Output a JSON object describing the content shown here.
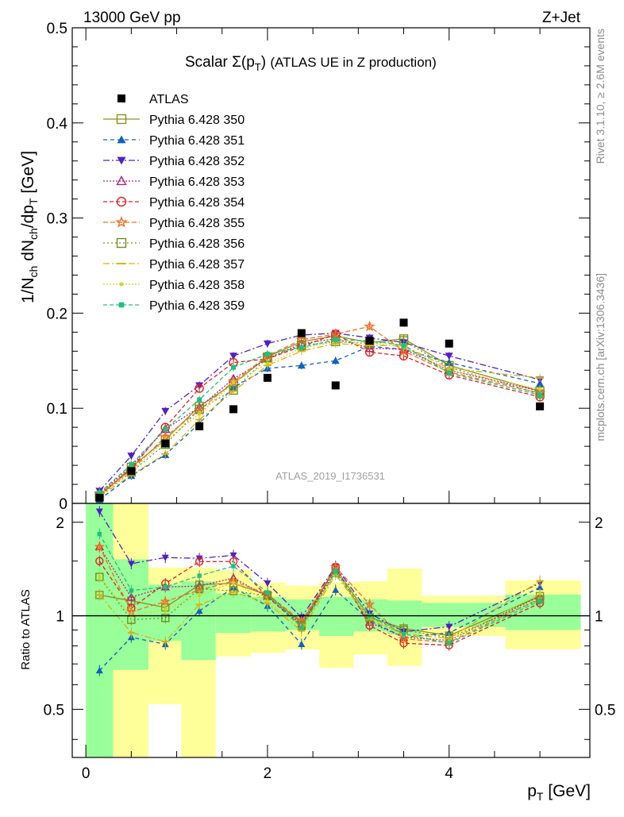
{
  "header": {
    "energy": "13000 GeV pp",
    "process": "Z+Jet"
  },
  "side": {
    "rivet": "Rivet 3.1.10, ≥ 2.6M events",
    "mcplots": "mcplots.cern.ch [arXiv:1306.3436]"
  },
  "watermark": "ATLAS_2019_I1736531",
  "chart_data": {
    "type": "scatter",
    "title": "Scalar Σ(p_T) (ATLAS UE in Z production)",
    "xlabel": "p_T [GeV]",
    "ylabel": "1/N_ch dN_ch/dp_T [GeV]",
    "ratio_ylabel": "Ratio to ATLAS",
    "xlim": [
      -0.15,
      5.55
    ],
    "ylim": [
      0,
      0.5
    ],
    "ratio_ylim": [
      0.35,
      2.3
    ],
    "ratio_scale": "log",
    "x_ticks": [
      0,
      2,
      4
    ],
    "y_ticks": [
      0,
      0.1,
      0.2,
      0.3,
      0.4,
      0.5
    ],
    "y_tick_labels": [
      "0",
      "0.1",
      "0.2",
      "0.3",
      "0.4",
      "0.5"
    ],
    "ratio_ticks": [
      0.5,
      1,
      2
    ],
    "ratio_tick_labels": [
      "0.5",
      "1",
      "2"
    ],
    "legend_position": "top-left",
    "x": [
      0.15,
      0.5,
      0.875,
      1.25,
      1.625,
      2.0,
      2.375,
      2.75,
      3.125,
      3.5,
      4.0,
      5.0
    ],
    "data": {
      "name": "ATLAS",
      "values": [
        0.006,
        0.034,
        0.063,
        0.081,
        0.099,
        0.132,
        0.179,
        0.124,
        0.171,
        0.19,
        0.168,
        0.102
      ]
    },
    "series": [
      {
        "name": "Pythia 6.428 350",
        "color": "#8f8f1f",
        "marker": "square-open",
        "dash": "solid",
        "values": [
          0.007,
          0.038,
          0.067,
          0.102,
          0.126,
          0.154,
          0.17,
          0.176,
          0.169,
          0.173,
          0.145,
          0.118
        ]
      },
      {
        "name": "Pythia 6.428 351",
        "color": "#1060c0",
        "marker": "triangle-up",
        "dash": "5,4",
        "values": [
          0.004,
          0.029,
          0.051,
          0.084,
          0.122,
          0.142,
          0.145,
          0.15,
          0.165,
          0.162,
          0.148,
          0.126
        ]
      },
      {
        "name": "Pythia 6.428 352",
        "color": "#5020c0",
        "marker": "triangle-down",
        "dash": "8,3,2,3",
        "values": [
          0.013,
          0.05,
          0.097,
          0.124,
          0.155,
          0.168,
          0.177,
          0.179,
          0.174,
          0.169,
          0.155,
          0.13
        ]
      },
      {
        "name": "Pythia 6.428 353",
        "color": "#b02080",
        "marker": "triangle-open",
        "dash": "2,2",
        "values": [
          0.01,
          0.039,
          0.078,
          0.101,
          0.131,
          0.152,
          0.168,
          0.173,
          0.163,
          0.162,
          0.14,
          0.118
        ]
      },
      {
        "name": "Pythia 6.428 354",
        "color": "#e02020",
        "marker": "circle-open",
        "dash": "5,3",
        "values": [
          0.009,
          0.036,
          0.08,
          0.121,
          0.148,
          0.152,
          0.165,
          0.178,
          0.159,
          0.155,
          0.135,
          0.112
        ]
      },
      {
        "name": "Pythia 6.428 355",
        "color": "#f07020",
        "marker": "star-open",
        "dash": "6,3",
        "values": [
          0.01,
          0.035,
          0.07,
          0.098,
          0.128,
          0.155,
          0.172,
          0.178,
          0.186,
          0.16,
          0.138,
          0.116
        ]
      },
      {
        "name": "Pythia 6.428 356",
        "color": "#6f8f1f",
        "marker": "square-open",
        "dash": "2,3",
        "values": [
          0.008,
          0.033,
          0.062,
          0.099,
          0.119,
          0.153,
          0.166,
          0.17,
          0.168,
          0.171,
          0.143,
          0.115
        ]
      },
      {
        "name": "Pythia 6.428 357",
        "color": "#d8b010",
        "marker": "dash",
        "dash": "8,3,2,3",
        "values": [
          0.007,
          0.03,
          0.052,
          0.088,
          0.118,
          0.145,
          0.16,
          0.168,
          0.166,
          0.166,
          0.142,
          0.132
        ]
      },
      {
        "name": "Pythia 6.428 358",
        "color": "#c8d820",
        "marker": "dot",
        "dash": "2,2",
        "values": [
          0.008,
          0.034,
          0.066,
          0.094,
          0.127,
          0.147,
          0.163,
          0.17,
          0.169,
          0.164,
          0.14,
          0.12
        ]
      },
      {
        "name": "Pythia 6.428 359",
        "color": "#20c080",
        "marker": "square-small",
        "dash": "5,3",
        "values": [
          0.011,
          0.041,
          0.078,
          0.109,
          0.143,
          0.157,
          0.164,
          0.172,
          0.171,
          0.166,
          0.137,
          0.114
        ]
      }
    ],
    "ratio_bands": [
      {
        "x0": 0.0,
        "x1": 0.3,
        "green": [
          0.0,
          9.9
        ],
        "yellow": [
          0.0,
          9.9
        ]
      },
      {
        "x0": 0.3,
        "x1": 0.69,
        "green": [
          0.67,
          1.52
        ],
        "yellow": [
          0.35,
          9.9
        ]
      },
      {
        "x0": 0.69,
        "x1": 1.05,
        "green": [
          0.83,
          1.26
        ],
        "yellow": [
          0.52,
          1.43
        ]
      },
      {
        "x0": 1.05,
        "x1": 1.43,
        "green": [
          0.72,
          1.29
        ],
        "yellow": [
          0.35,
          1.43
        ]
      },
      {
        "x0": 1.43,
        "x1": 1.82,
        "green": [
          0.88,
          1.18
        ],
        "yellow": [
          0.74,
          1.4
        ]
      },
      {
        "x0": 1.82,
        "x1": 2.2,
        "green": [
          0.89,
          1.15
        ],
        "yellow": [
          0.76,
          1.28
        ]
      },
      {
        "x0": 2.2,
        "x1": 2.57,
        "green": [
          0.9,
          1.13
        ],
        "yellow": [
          0.78,
          1.25
        ]
      },
      {
        "x0": 2.57,
        "x1": 2.95,
        "green": [
          0.86,
          1.15
        ],
        "yellow": [
          0.68,
          1.28
        ]
      },
      {
        "x0": 2.95,
        "x1": 3.32,
        "green": [
          0.89,
          1.13
        ],
        "yellow": [
          0.75,
          1.29
        ]
      },
      {
        "x0": 3.32,
        "x1": 3.7,
        "green": [
          0.87,
          1.12
        ],
        "yellow": [
          0.69,
          1.42
        ]
      },
      {
        "x0": 3.7,
        "x1": 4.62,
        "green": [
          0.92,
          1.1
        ],
        "yellow": [
          0.86,
          1.16
        ]
      },
      {
        "x0": 4.62,
        "x1": 5.45,
        "green": [
          0.9,
          1.17
        ],
        "yellow": [
          0.78,
          1.3
        ]
      }
    ]
  }
}
